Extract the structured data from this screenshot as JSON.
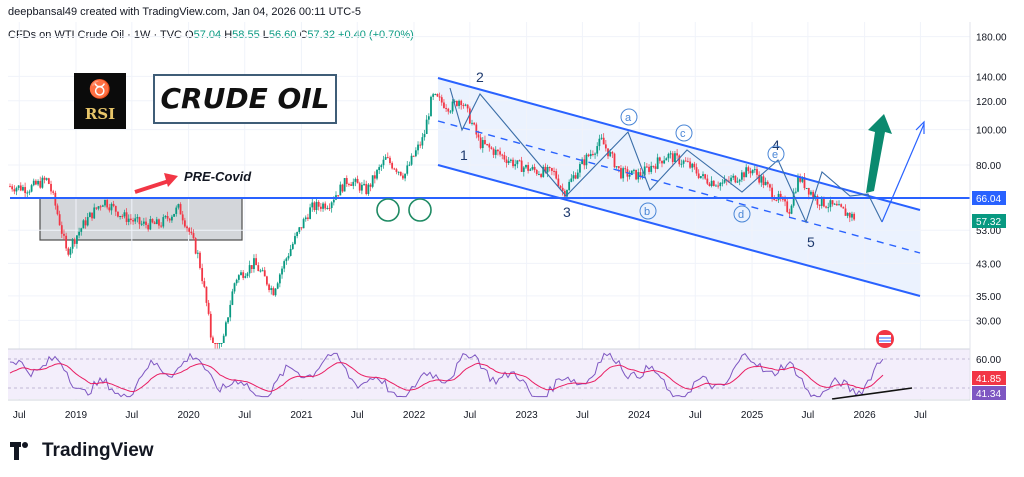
{
  "header": {
    "author_line": "deepbansal49 created with TradingView.com, Jan 04, 2026 00:11 UTC-5"
  },
  "symbol": {
    "name": "CFDs on WTI Crude Oil · 1W · TVC",
    "open_label": "O",
    "open": "57.04",
    "high_label": "H",
    "high": "58.55",
    "low_label": "L",
    "low": "56.60",
    "close_label": "C",
    "close": "57.32",
    "change": "+0.40 (+0.70%)"
  },
  "overlay": {
    "title": "CRUDE OIL",
    "logo_text": "RSI",
    "pre_covid_label": "PRE-Covid",
    "wave_labels": [
      "1",
      "2",
      "3",
      "4",
      "5"
    ],
    "sub_wave_labels": [
      "a",
      "b",
      "c",
      "d",
      "e"
    ]
  },
  "colors": {
    "up": "#089981",
    "down": "#f23645",
    "channel": "#2962ff",
    "channel_fill": "#e8f0fe",
    "rsi_line": "#7e57c2",
    "rsi_ma": "#e91e63",
    "arrow_green": "#0b8a6f",
    "arrow_red": "#f23645"
  },
  "footer": {
    "brand": "TradingView"
  },
  "chart_data": {
    "type": "candlestick",
    "timeframe": "1W",
    "price_axis": {
      "scale": "log",
      "ticks": [
        "180.00",
        "140.00",
        "120.00",
        "100.00",
        "80.00",
        "53.00",
        "43.00",
        "35.00",
        "30.00"
      ],
      "range": [
        26,
        190
      ]
    },
    "price_badges": [
      {
        "label": "66.04",
        "value": 66.04,
        "color": "#2962ff"
      },
      {
        "label": "57.32",
        "value": 57.32,
        "color": "#089981"
      }
    ],
    "rsi_axis": {
      "ticks": [
        "60.00"
      ],
      "badges": [
        {
          "label": "41.85",
          "color": "#f23645"
        },
        {
          "label": "41.34",
          "color": "#7e57c2"
        }
      ]
    },
    "time_axis": {
      "ticks": [
        "Jul",
        "2019",
        "Jul",
        "2020",
        "Jul",
        "2021",
        "Jul",
        "2022",
        "Jul",
        "2023",
        "Jul",
        "2024",
        "Jul",
        "2025",
        "Jul",
        "2026",
        "Jul"
      ],
      "start": "2018-06",
      "end": "2026-08"
    },
    "horizontal_line": 66.04,
    "series_monthly_close": [
      [
        "2018-06",
        70
      ],
      [
        "2018-08",
        69
      ],
      [
        "2018-10",
        73
      ],
      [
        "2018-12",
        46
      ],
      [
        "2019-02",
        56
      ],
      [
        "2019-04",
        64
      ],
      [
        "2019-06",
        58
      ],
      [
        "2019-08",
        55
      ],
      [
        "2019-10",
        55
      ],
      [
        "2019-12",
        61
      ],
      [
        "2020-02",
        45
      ],
      [
        "2020-04",
        19
      ],
      [
        "2020-06",
        39
      ],
      [
        "2020-08",
        43
      ],
      [
        "2020-10",
        36
      ],
      [
        "2020-12",
        48
      ],
      [
        "2021-02",
        61
      ],
      [
        "2021-04",
        63
      ],
      [
        "2021-06",
        73
      ],
      [
        "2021-08",
        68
      ],
      [
        "2021-10",
        83
      ],
      [
        "2021-12",
        75
      ],
      [
        "2022-02",
        95
      ],
      [
        "2022-03",
        123
      ],
      [
        "2022-05",
        115
      ],
      [
        "2022-06",
        122
      ],
      [
        "2022-08",
        92
      ],
      [
        "2022-10",
        86
      ],
      [
        "2022-12",
        80
      ],
      [
        "2023-02",
        77
      ],
      [
        "2023-04",
        76
      ],
      [
        "2023-05",
        67
      ],
      [
        "2023-07",
        81
      ],
      [
        "2023-09",
        93
      ],
      [
        "2023-11",
        76
      ],
      [
        "2024-01",
        75
      ],
      [
        "2024-04",
        85
      ],
      [
        "2024-06",
        81
      ],
      [
        "2024-08",
        73
      ],
      [
        "2024-10",
        71
      ],
      [
        "2025-01",
        78
      ],
      [
        "2025-03",
        68
      ],
      [
        "2025-05",
        60
      ],
      [
        "2025-06",
        74
      ],
      [
        "2025-08",
        64
      ],
      [
        "2025-10",
        61
      ],
      [
        "2025-12",
        57.32
      ]
    ]
  }
}
